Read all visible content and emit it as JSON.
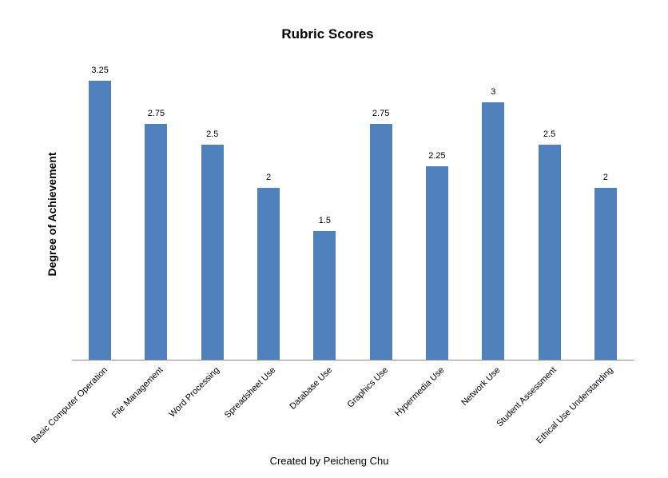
{
  "chart_data": {
    "type": "bar",
    "title": "Rubric Scores",
    "ylabel": "Degree of Achievement",
    "xlabel": "",
    "categories": [
      "Basic Computer Operation",
      "File Management",
      "Word Processing",
      "Spreadsheet Use",
      "Database Use",
      "Graphics Use",
      "Hypermedia Use",
      "Network Use",
      "Student Assessment",
      "Ethical Use Understanding"
    ],
    "values": [
      3.25,
      2.75,
      2.5,
      2,
      1.5,
      2.75,
      2.25,
      3,
      2.5,
      2
    ],
    "value_labels": [
      "3.25",
      "2.75",
      "2.5",
      "2",
      "1.5",
      "2.75",
      "2.25",
      "3",
      "2.5",
      "2"
    ],
    "ylim": [
      0,
      3.5
    ],
    "grid": false,
    "legend": "none",
    "data_labels_shown": true,
    "bar_color": "#4F81BD",
    "axis_color": "#8C8C8C"
  },
  "footer": {
    "credit": "Created by Peicheng Chu"
  }
}
